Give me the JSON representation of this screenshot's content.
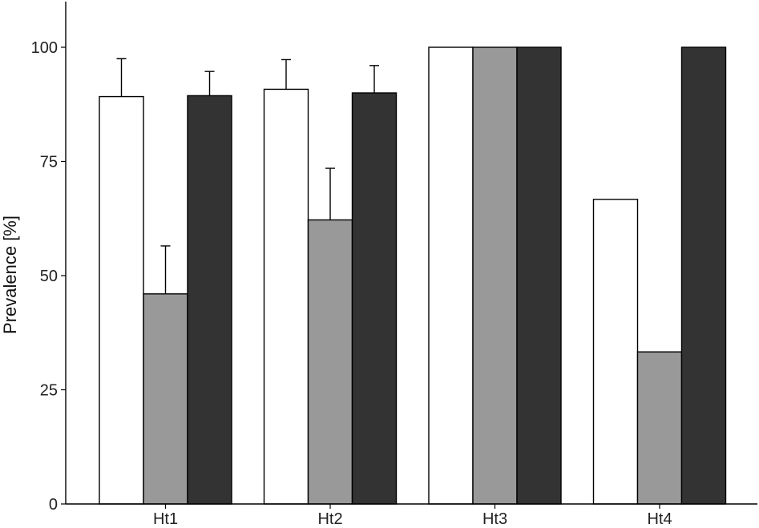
{
  "chart_data": {
    "type": "bar",
    "title": "",
    "xlabel": "",
    "ylabel": "Prevalence [%]",
    "ylim": [
      0,
      110
    ],
    "yticks": [
      0,
      25,
      50,
      75,
      100
    ],
    "categories": [
      "Ht1",
      "Ht2",
      "Ht3",
      "Ht4"
    ],
    "series": [
      {
        "color": "#ffffff",
        "values": [
          89.2,
          90.8,
          100,
          66.7
        ],
        "error_upper": [
          97.5,
          97.3,
          null,
          null
        ]
      },
      {
        "color": "#999999",
        "values": [
          46.0,
          62.2,
          100,
          33.3
        ],
        "error_upper": [
          56.5,
          73.5,
          null,
          null
        ]
      },
      {
        "color": "#333333",
        "values": [
          89.4,
          90.0,
          100,
          100
        ],
        "error_upper": [
          94.7,
          96.0,
          null,
          null
        ]
      }
    ],
    "grid": false,
    "legend": "none"
  }
}
